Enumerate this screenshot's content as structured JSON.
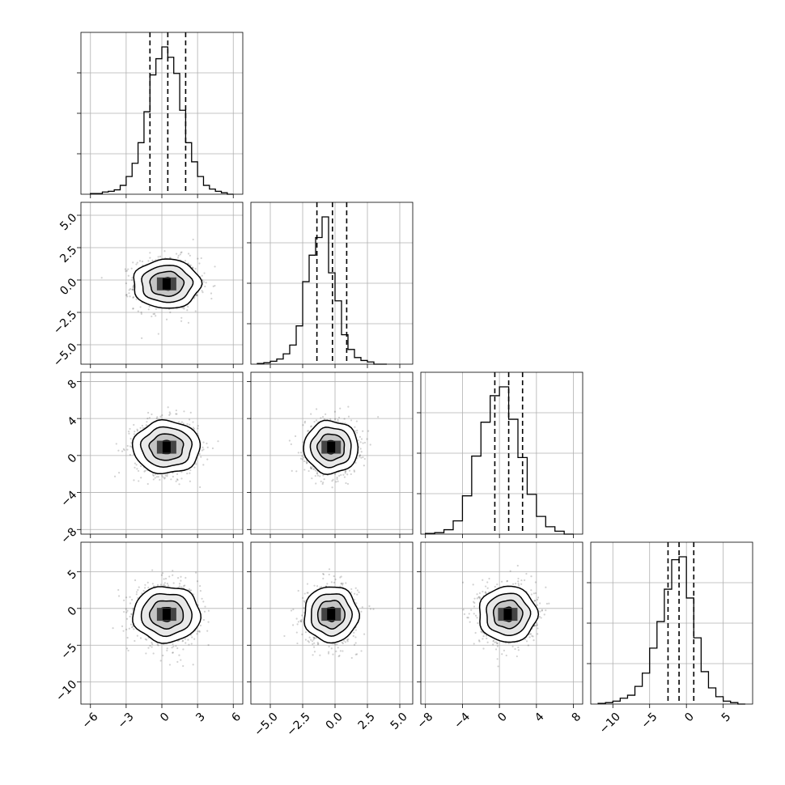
{
  "chart_data": {
    "type": "corner",
    "grid": true,
    "colors": {
      "line": "#000000",
      "grid": "#b0b0b0",
      "frame": "#000000"
    },
    "parameters": [
      {
        "index": 0,
        "range": [
          -6.8,
          6.8
        ],
        "ticks": [
          -6,
          -3,
          0,
          3,
          6
        ],
        "tick_labels": [
          "−6",
          "−3",
          "0",
          "3",
          "6"
        ],
        "quantiles": [
          -1.0,
          0.5,
          2.0
        ],
        "hist": {
          "edges": [
            -6.0,
            -5.5,
            -5.0,
            -4.5,
            -4.0,
            -3.5,
            -3.0,
            -2.5,
            -2.0,
            -1.5,
            -1.0,
            -0.5,
            0.0,
            0.5,
            1.0,
            1.5,
            2.0,
            2.5,
            3.0,
            3.5,
            4.0,
            4.5,
            5.0,
            5.5,
            6.0
          ],
          "counts": [
            0.005,
            0.005,
            0.015,
            0.02,
            0.03,
            0.06,
            0.12,
            0.21,
            0.35,
            0.56,
            0.81,
            0.92,
            1.0,
            0.93,
            0.82,
            0.57,
            0.35,
            0.22,
            0.12,
            0.06,
            0.035,
            0.02,
            0.01,
            0.0
          ]
        },
        "center": 0.4,
        "sigma": 1.35
      },
      {
        "index": 1,
        "range": [
          -6.5,
          6.0
        ],
        "ticks": [
          -5.0,
          -2.5,
          0.0,
          2.5,
          5.0
        ],
        "tick_labels": [
          "−5.0",
          "−2.5",
          "0.0",
          "2.5",
          "5.0"
        ],
        "quantiles": [
          -1.4,
          -0.2,
          0.9
        ],
        "hist": {
          "edges": [
            -6.0,
            -5.5,
            -5.0,
            -4.5,
            -4.0,
            -3.5,
            -3.0,
            -2.5,
            -2.0,
            -1.5,
            -1.0,
            -0.5,
            0.0,
            0.5,
            1.0,
            1.5,
            2.0,
            2.5,
            3.0,
            3.5,
            4.0
          ],
          "counts": [
            0.005,
            0.01,
            0.02,
            0.035,
            0.07,
            0.13,
            0.26,
            0.56,
            0.74,
            0.86,
            1.0,
            0.62,
            0.43,
            0.2,
            0.1,
            0.045,
            0.025,
            0.015,
            0.0,
            0.0
          ]
        },
        "center": -0.3,
        "sigma": 1.0
      },
      {
        "index": 2,
        "range": [
          -8.5,
          9.0
        ],
        "ticks": [
          -8,
          -4,
          0,
          4,
          8
        ],
        "tick_labels": [
          "−8",
          "−4",
          "0",
          "4",
          "8"
        ],
        "quantiles": [
          -0.5,
          1.0,
          2.5
        ],
        "hist": {
          "edges": [
            -8.0,
            -7.0,
            -6.0,
            -5.0,
            -4.0,
            -3.0,
            -2.0,
            -1.0,
            0.0,
            1.0,
            2.0,
            3.0,
            4.0,
            5.0,
            6.0,
            7.0,
            8.0
          ],
          "counts": [
            0.005,
            0.01,
            0.03,
            0.09,
            0.26,
            0.53,
            0.76,
            0.94,
            1.0,
            0.78,
            0.52,
            0.27,
            0.12,
            0.05,
            0.02,
            0.0
          ]
        },
        "center": 0.9,
        "sigma": 1.5
      },
      {
        "index": 3,
        "range": [
          -13.0,
          9.0
        ],
        "ticks": [
          -10,
          -5,
          0,
          5
        ],
        "tick_labels": [
          "−10",
          "−5",
          "0",
          "5"
        ],
        "quantiles": [
          -2.5,
          -1.0,
          1.0
        ],
        "hist": {
          "edges": [
            -12.0,
            -11.0,
            -10.0,
            -9.0,
            -8.0,
            -7.0,
            -6.0,
            -5.0,
            -4.0,
            -3.0,
            -2.0,
            -1.0,
            0.0,
            1.0,
            2.0,
            3.0,
            4.0,
            5.0,
            6.0,
            7.0,
            8.0
          ],
          "counts": [
            0.005,
            0.01,
            0.02,
            0.04,
            0.06,
            0.12,
            0.21,
            0.38,
            0.56,
            0.78,
            0.98,
            1.0,
            0.72,
            0.45,
            0.22,
            0.11,
            0.05,
            0.02,
            0.01,
            0.0
          ]
        },
        "center": -0.8,
        "sigma": 2.0
      }
    ],
    "panels_2d": [
      {
        "x": 0,
        "y": 1
      },
      {
        "x": 0,
        "y": 2
      },
      {
        "x": 1,
        "y": 2
      },
      {
        "x": 0,
        "y": 3
      },
      {
        "x": 1,
        "y": 3
      },
      {
        "x": 2,
        "y": 3
      }
    ],
    "contour_levels_sigma": [
      0.5,
      1.0,
      1.5,
      2.0
    ]
  }
}
